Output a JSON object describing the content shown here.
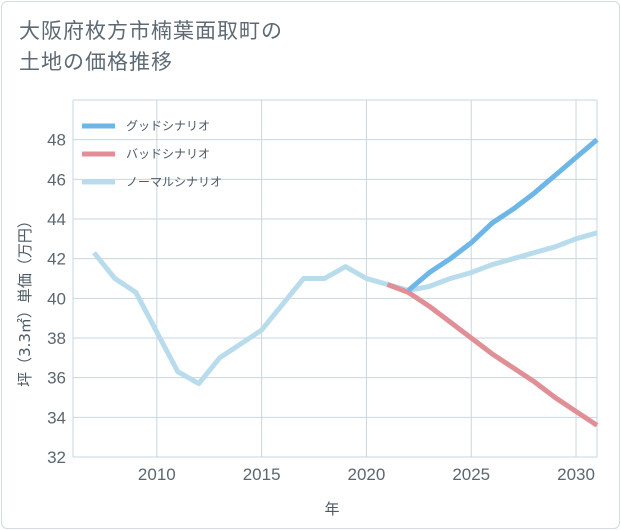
{
  "title_lines": [
    "大阪府枚方市楠葉面取町の",
    "土地の価格推移"
  ],
  "chart_data": {
    "type": "line",
    "title": "大阪府枚方市楠葉面取町の土地の価格推移",
    "xlabel": "年",
    "ylabel": "坪（3.3㎡）単価（万円）",
    "xlim": [
      2006,
      2031
    ],
    "ylim": [
      32,
      50
    ],
    "x_ticks": [
      2010,
      2015,
      2020,
      2025,
      2030
    ],
    "y_ticks": [
      32,
      34,
      36,
      38,
      40,
      42,
      44,
      46,
      48
    ],
    "grid": true,
    "legend_position": "top-left",
    "series": [
      {
        "name": "グッドシナリオ",
        "color": "#6cb6e8",
        "x": [
          2022,
          2023,
          2024,
          2025,
          2026,
          2027,
          2028,
          2029,
          2030,
          2031
        ],
        "y": [
          40.4,
          41.3,
          42.0,
          42.8,
          43.8,
          44.5,
          45.3,
          46.2,
          47.1,
          48.0
        ]
      },
      {
        "name": "バッドシナリオ",
        "color": "#e08f96",
        "x": [
          2021,
          2022,
          2023,
          2024,
          2025,
          2026,
          2027,
          2028,
          2029,
          2030,
          2031
        ],
        "y": [
          40.7,
          40.3,
          39.6,
          38.8,
          38.0,
          37.2,
          36.5,
          35.8,
          35.0,
          34.3,
          33.6
        ]
      },
      {
        "name": "ノーマルシナリオ",
        "color": "#b9dcec",
        "x": [
          2007,
          2008,
          2009,
          2010,
          2011,
          2012,
          2013,
          2014,
          2015,
          2016,
          2017,
          2018,
          2019,
          2020,
          2021,
          2022,
          2023,
          2024,
          2025,
          2026,
          2027,
          2028,
          2029,
          2030,
          2031
        ],
        "y": [
          42.3,
          41.0,
          40.3,
          38.3,
          36.3,
          35.7,
          37.0,
          37.7,
          38.4,
          39.7,
          41.0,
          41.0,
          41.6,
          41.0,
          40.7,
          40.4,
          40.6,
          41.0,
          41.3,
          41.7,
          42.0,
          42.3,
          42.6,
          43.0,
          43.3
        ]
      }
    ]
  }
}
